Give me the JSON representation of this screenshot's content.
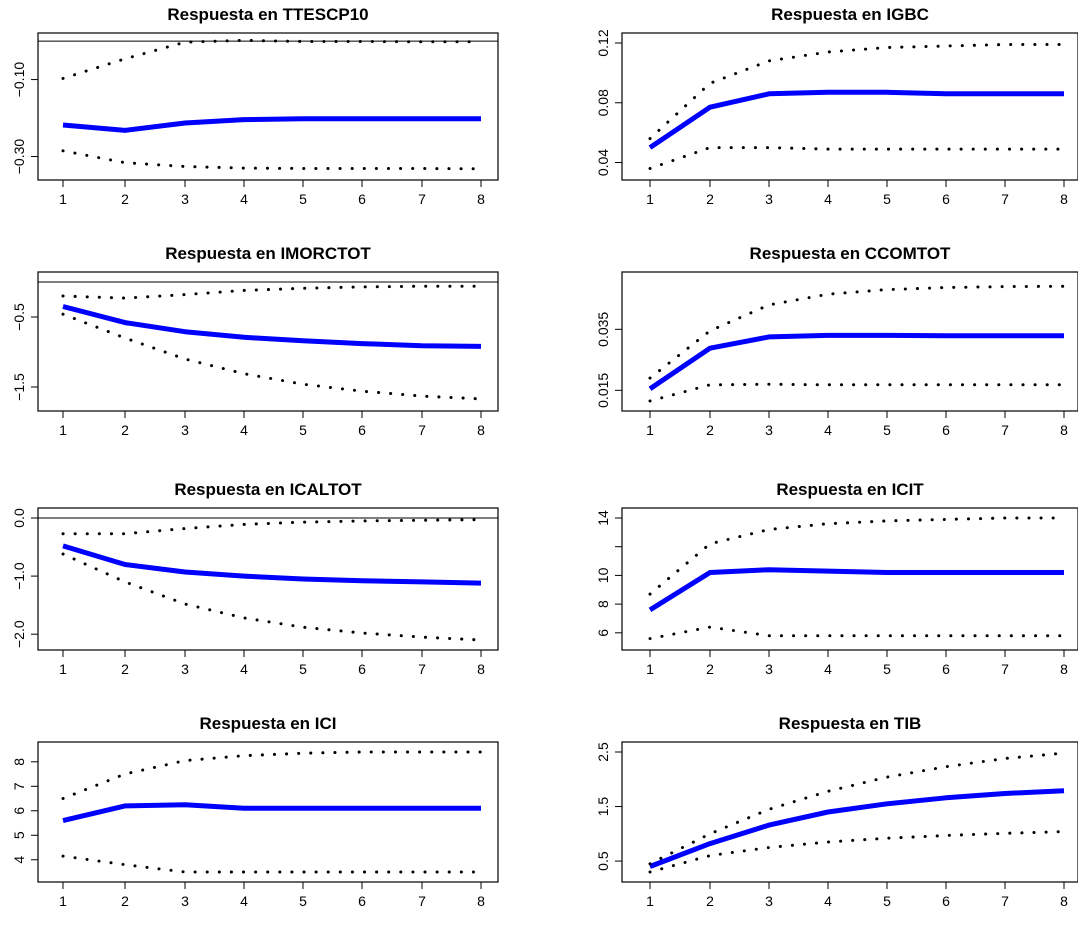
{
  "chart_data": [
    {
      "type": "line",
      "title": "Respuesta en TTESCP10",
      "x": [
        1,
        2,
        3,
        4,
        5,
        6,
        7,
        8
      ],
      "xticks": [
        "1",
        "2",
        "3",
        "4",
        "5",
        "6",
        "7",
        "8"
      ],
      "yticks": [
        -0.3,
        -0.1
      ],
      "ytick_labels": [
        "−0.30",
        "−0.10"
      ],
      "ylim": [
        -0.335,
        -0.005
      ],
      "zero_line": 0,
      "series": [
        {
          "role": "response",
          "values": [
            -0.218,
            -0.232,
            -0.213,
            -0.204,
            -0.202,
            -0.202,
            -0.202,
            -0.202
          ]
        },
        {
          "role": "upper",
          "values": [
            -0.097,
            -0.046,
            -0.003,
            0.002,
            -0.001,
            -0.001,
            -0.002,
            -0.002
          ]
        },
        {
          "role": "lower",
          "values": [
            -0.285,
            -0.316,
            -0.326,
            -0.33,
            -0.331,
            -0.331,
            -0.331,
            -0.332
          ]
        }
      ]
    },
    {
      "type": "line",
      "title": "Respuesta en IGBC",
      "x": [
        1,
        2,
        3,
        4,
        5,
        6,
        7,
        8
      ],
      "xticks": [
        "1",
        "2",
        "3",
        "4",
        "5",
        "6",
        "7",
        "8"
      ],
      "yticks": [
        0.04,
        0.08,
        0.12
      ],
      "ytick_labels": [
        "0.04",
        "0.08",
        "0.12"
      ],
      "ylim": [
        0.035,
        0.12
      ],
      "series": [
        {
          "role": "response",
          "values": [
            0.05,
            0.077,
            0.086,
            0.087,
            0.087,
            0.086,
            0.086,
            0.086
          ]
        },
        {
          "role": "upper",
          "values": [
            0.056,
            0.093,
            0.108,
            0.114,
            0.117,
            0.118,
            0.119,
            0.119
          ]
        },
        {
          "role": "lower",
          "values": [
            0.036,
            0.05,
            0.05,
            0.049,
            0.049,
            0.049,
            0.049,
            0.049
          ]
        }
      ]
    },
    {
      "type": "line",
      "title": "Respuesta en IMORCTOT",
      "x": [
        1,
        2,
        3,
        4,
        5,
        6,
        7,
        8
      ],
      "xticks": [
        "1",
        "2",
        "3",
        "4",
        "5",
        "6",
        "7",
        "8"
      ],
      "yticks": [
        -1.5,
        -0.5
      ],
      "ytick_labels": [
        "−1.5",
        "−0.5"
      ],
      "ylim": [
        -1.7,
        0.0
      ],
      "zero_line": 0,
      "series": [
        {
          "role": "response",
          "values": [
            -0.35,
            -0.58,
            -0.71,
            -0.79,
            -0.84,
            -0.88,
            -0.91,
            -0.92
          ]
        },
        {
          "role": "upper",
          "values": [
            -0.2,
            -0.23,
            -0.18,
            -0.12,
            -0.09,
            -0.07,
            -0.06,
            -0.06
          ]
        },
        {
          "role": "lower",
          "values": [
            -0.46,
            -0.8,
            -1.1,
            -1.31,
            -1.46,
            -1.56,
            -1.63,
            -1.67
          ]
        }
      ]
    },
    {
      "type": "line",
      "title": "Respuesta en CCOMTOT",
      "x": [
        1,
        2,
        3,
        4,
        5,
        6,
        7,
        8
      ],
      "xticks": [
        "1",
        "2",
        "3",
        "4",
        "5",
        "6",
        "7",
        "8"
      ],
      "yticks": [
        0.015,
        0.035
      ],
      "ytick_labels": [
        "0.015",
        "0.035"
      ],
      "ylim": [
        0.0115,
        0.0505
      ],
      "series": [
        {
          "role": "response",
          "values": [
            0.0155,
            0.0288,
            0.0325,
            0.033,
            0.033,
            0.0329,
            0.0329,
            0.0329
          ]
        },
        {
          "role": "upper",
          "values": [
            0.019,
            0.0345,
            0.043,
            0.0465,
            0.048,
            0.0487,
            0.049,
            0.0491
          ]
        },
        {
          "role": "lower",
          "values": [
            0.0115,
            0.0168,
            0.017,
            0.0168,
            0.0168,
            0.0168,
            0.0168,
            0.0168
          ]
        }
      ]
    },
    {
      "type": "line",
      "title": "Respuesta en ICALTOT",
      "x": [
        1,
        2,
        3,
        4,
        5,
        6,
        7,
        8
      ],
      "xticks": [
        "1",
        "2",
        "3",
        "4",
        "5",
        "6",
        "7",
        "8"
      ],
      "yticks": [
        -2.0,
        -1.0,
        0.0
      ],
      "ytick_labels": [
        "−2.0",
        "−1.0",
        "0.0"
      ],
      "ylim": [
        -2.1,
        0.0
      ],
      "zero_line": 0,
      "series": [
        {
          "role": "response",
          "values": [
            -0.48,
            -0.8,
            -0.93,
            -1.0,
            -1.05,
            -1.08,
            -1.1,
            -1.12
          ]
        },
        {
          "role": "upper",
          "values": [
            -0.27,
            -0.27,
            -0.18,
            -0.11,
            -0.07,
            -0.05,
            -0.04,
            -0.03
          ]
        },
        {
          "role": "lower",
          "values": [
            -0.62,
            -1.1,
            -1.48,
            -1.72,
            -1.88,
            -1.98,
            -2.05,
            -2.1
          ]
        }
      ]
    },
    {
      "type": "line",
      "title": "Respuesta en ICIT",
      "x": [
        1,
        2,
        3,
        4,
        5,
        6,
        7,
        8
      ],
      "xticks": [
        "1",
        "2",
        "3",
        "4",
        "5",
        "6",
        "7",
        "8"
      ],
      "yticks": [
        6,
        8,
        10,
        12,
        14
      ],
      "ytick_labels": [
        "6",
        "8",
        "10",
        "",
        "14"
      ],
      "ylim": [
        5.5,
        14.0
      ],
      "series": [
        {
          "role": "response",
          "values": [
            7.6,
            10.2,
            10.4,
            10.3,
            10.2,
            10.2,
            10.2,
            10.2
          ]
        },
        {
          "role": "upper",
          "values": [
            8.7,
            12.2,
            13.2,
            13.6,
            13.8,
            13.9,
            14.0,
            14.0
          ]
        },
        {
          "role": "lower",
          "values": [
            5.6,
            6.4,
            5.8,
            5.8,
            5.8,
            5.8,
            5.8,
            5.8
          ]
        }
      ]
    },
    {
      "type": "line",
      "title": "Respuesta en ICI",
      "x": [
        1,
        2,
        3,
        4,
        5,
        6,
        7,
        8
      ],
      "xticks": [
        "1",
        "2",
        "3",
        "4",
        "5",
        "6",
        "7",
        "8"
      ],
      "yticks": [
        4,
        5,
        6,
        7,
        8
      ],
      "ytick_labels": [
        "4",
        "5",
        "6",
        "7",
        "8"
      ],
      "ylim": [
        3.5,
        8.4
      ],
      "series": [
        {
          "role": "response",
          "values": [
            5.6,
            6.2,
            6.25,
            6.1,
            6.1,
            6.1,
            6.1,
            6.1
          ]
        },
        {
          "role": "upper",
          "values": [
            6.5,
            7.5,
            8.05,
            8.25,
            8.35,
            8.4,
            8.4,
            8.4
          ]
        },
        {
          "role": "lower",
          "values": [
            4.15,
            3.8,
            3.5,
            3.5,
            3.5,
            3.5,
            3.5,
            3.5
          ]
        }
      ]
    },
    {
      "type": "line",
      "title": "Respuesta en TIB",
      "x": [
        1,
        2,
        3,
        4,
        5,
        6,
        7,
        8
      ],
      "xticks": [
        "1",
        "2",
        "3",
        "4",
        "5",
        "6",
        "7",
        "8"
      ],
      "yticks": [
        0.5,
        1.5,
        2.5
      ],
      "ytick_labels": [
        "0.5",
        "1.5",
        "2.5"
      ],
      "ylim": [
        0.3,
        2.5
      ],
      "series": [
        {
          "role": "response",
          "values": [
            0.4,
            0.82,
            1.16,
            1.4,
            1.55,
            1.66,
            1.74,
            1.79
          ]
        },
        {
          "role": "upper",
          "values": [
            0.45,
            1.0,
            1.45,
            1.78,
            2.04,
            2.23,
            2.38,
            2.48
          ]
        },
        {
          "role": "lower",
          "values": [
            0.3,
            0.6,
            0.75,
            0.85,
            0.92,
            0.97,
            1.01,
            1.04
          ]
        }
      ]
    }
  ]
}
